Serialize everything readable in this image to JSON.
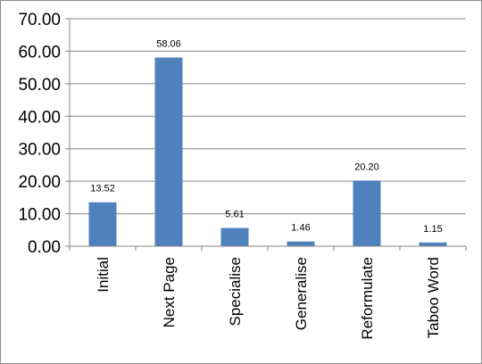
{
  "chart_data": {
    "type": "bar",
    "title": "",
    "xlabel": "",
    "ylabel": "",
    "categories": [
      "Initial",
      "Next Page",
      "Specialise",
      "Generalise",
      "Reformulate",
      "Taboo Word"
    ],
    "series": [
      {
        "values": [
          13.52,
          58.06,
          5.61,
          1.46,
          20.2,
          1.15
        ]
      }
    ],
    "data_labels": [
      "13.52",
      "58.06",
      "5.61",
      "1.46",
      "20.20",
      "1.15"
    ],
    "ylim": [
      0,
      70
    ],
    "yticks": [
      "0.00",
      "10.00",
      "20.00",
      "30.00",
      "40.00",
      "50.00",
      "60.00",
      "70.00"
    ],
    "grid": true,
    "legend": "none",
    "bar_color": "#4f81bd",
    "grid_color": "#868686"
  }
}
